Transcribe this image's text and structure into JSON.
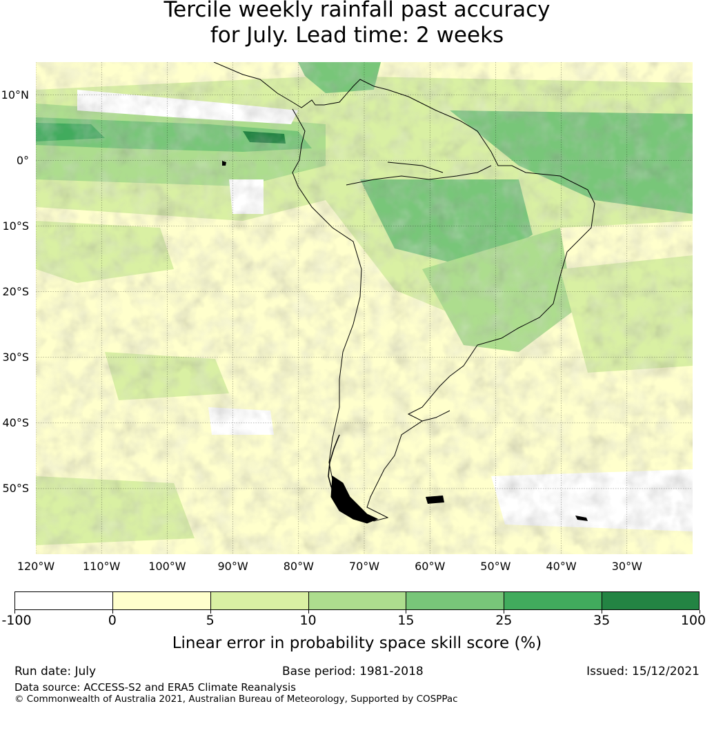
{
  "title_line1": "Tercile weekly rainfall past accuracy",
  "title_line2": "for July. Lead time: 2 weeks",
  "map": {
    "lat_labels": [
      "10°N",
      "0°",
      "10°S",
      "20°S",
      "30°S",
      "40°S",
      "50°S"
    ],
    "lat_values": [
      10,
      0,
      -10,
      -20,
      -30,
      -40,
      -50
    ],
    "lon_labels": [
      "120°W",
      "110°W",
      "100°W",
      "90°W",
      "80°W",
      "70°W",
      "60°W",
      "50°W",
      "40°W",
      "30°W"
    ],
    "lon_values": [
      -120,
      -110,
      -100,
      -90,
      -80,
      -70,
      -60,
      -50,
      -40,
      -30
    ],
    "extent": {
      "lon_min": -120,
      "lon_max": -20,
      "lat_min": -60,
      "lat_max": 15
    },
    "gridlines": true,
    "coastline_color": "#000000"
  },
  "colorbar": {
    "ticks": [
      "-100",
      "0",
      "5",
      "10",
      "15",
      "25",
      "35",
      "100"
    ],
    "colors": [
      "#ffffff",
      "#ffffcc",
      "#d9f0a3",
      "#addd8e",
      "#78c679",
      "#41ab5d",
      "#238443"
    ],
    "label": "Linear error in probability space skill score (%)"
  },
  "footer": {
    "run_date": "Run date: July",
    "base_period": "Base period: 1981-2018",
    "issued": "Issued: 15/12/2021",
    "data_source": "Data source: ACCESS-S2 and ERA5 Climate Reanalysis",
    "copyright": "© Commonwealth of Australia 2021, Australian Bureau of Meteorology, Supported by COSPPac"
  }
}
